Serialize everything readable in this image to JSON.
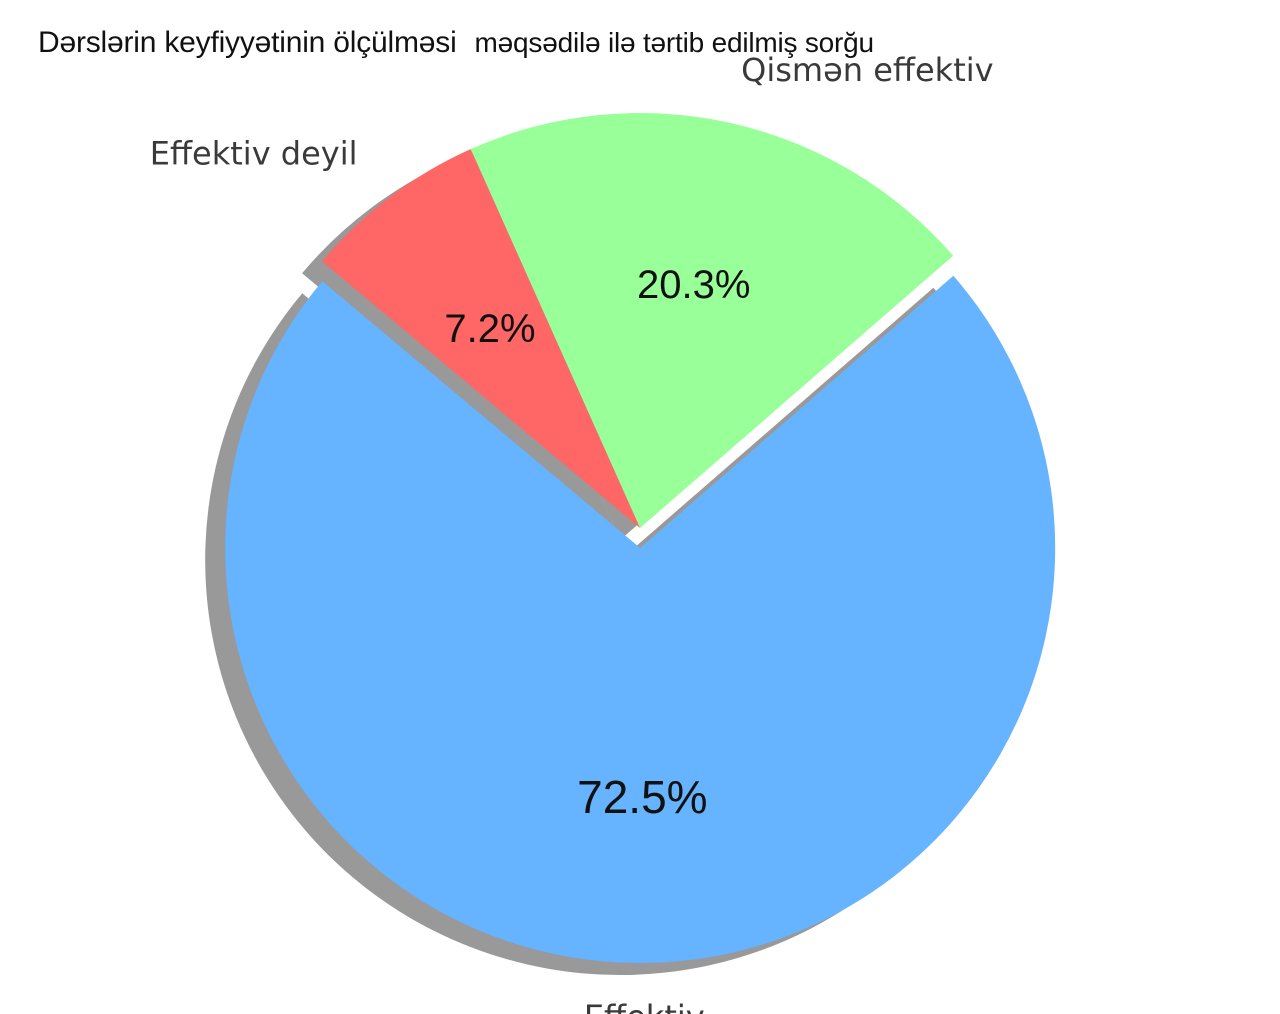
{
  "title_part1": "Dərslərin keyfiyyətinin ölçülməsi",
  "title_part2": "məqsədilə ilə tərtib edilmiş sorğu",
  "chart_data": {
    "type": "pie",
    "title": "Dərslərin keyfiyyətinin ölçülməsi  məqsədilə ilə tərtib edilmiş sorğu",
    "slices": [
      {
        "label": "Effektiv",
        "value": 72.5,
        "pct_label": "72.5%",
        "color": "#66b3ff",
        "exploded": true
      },
      {
        "label": "Qismən effektiv",
        "value": 20.3,
        "pct_label": "20.3%",
        "color": "#99ff99",
        "exploded": false
      },
      {
        "label": "Effektiv deyil",
        "value": 7.2,
        "pct_label": "7.2%",
        "color": "#ff6666",
        "exploded": false
      }
    ],
    "shadow": true
  }
}
